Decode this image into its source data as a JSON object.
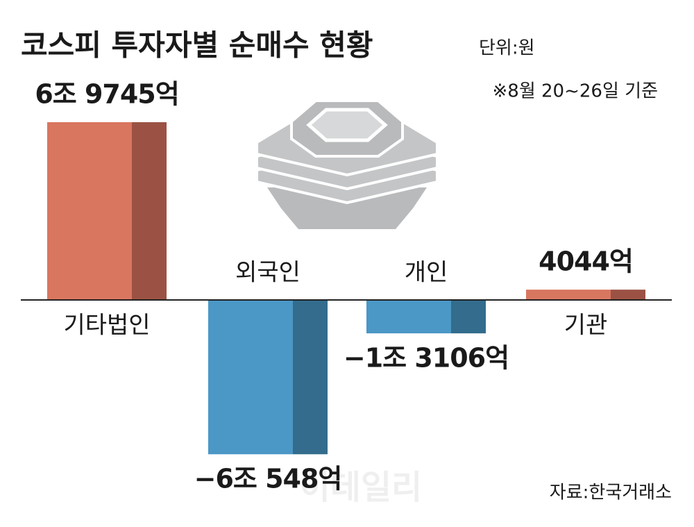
{
  "chart_data": {
    "type": "bar",
    "title": "코스피 투자자별 순매수 현황",
    "unit": "단위:원",
    "note": "※8월 20~26일 기준",
    "categories": [
      "기타법인",
      "외국인",
      "개인",
      "기관"
    ],
    "values": [
      69745,
      -60548,
      -13106,
      4044
    ],
    "value_labels": [
      "6조 9745억",
      "−6조 548억",
      "−1조 3106억",
      "4044억"
    ],
    "positive_color": "#d9765f",
    "positive_side_color": "#9b5244",
    "negative_color": "#4b97c6",
    "negative_side_color": "#336c8c",
    "source": "자료:한국거래소",
    "watermark": "이데일리"
  }
}
